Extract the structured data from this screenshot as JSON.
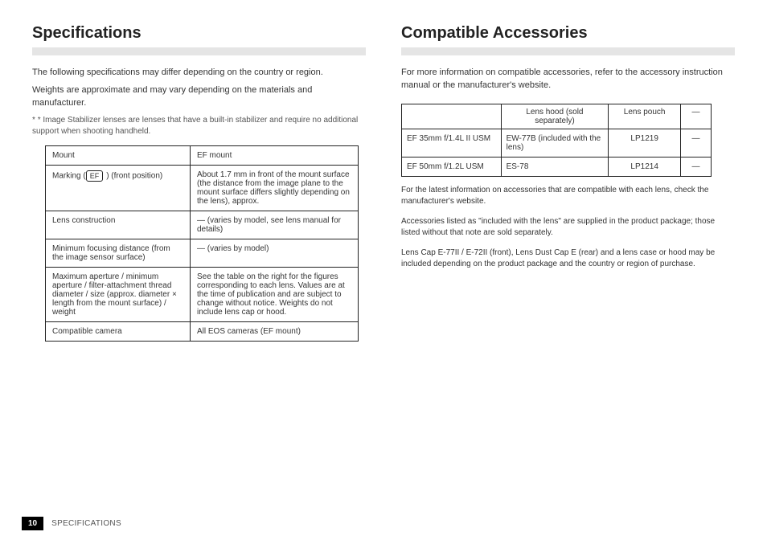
{
  "left": {
    "title": "Specifications",
    "intro_lines": [
      "The following specifications may differ depending on the country or region.",
      "Weights are approximate and may vary depending on the materials and manufacturer."
    ],
    "note": "* Image Stabilizer lenses are lenses that have a built-in stabilizer and require no additional support when shooting handheld.",
    "spec_rows": [
      {
        "k": "Mount",
        "v": "EF mount",
        "icon": null
      },
      {
        "k_prefix": "Marking (",
        "k_suffix": ") (front position)",
        "icon": "EF",
        "v": "About 1.7 mm in front of the mount surface (the distance from the image plane to the mount surface differs slightly depending on the lens), approx."
      },
      {
        "k": "Lens construction",
        "v": "— (varies by model, see lens manual for details)"
      },
      {
        "k": "Minimum focusing distance (from the image sensor surface)",
        "v": "— (varies by model)"
      },
      {
        "k": "Maximum aperture / minimum aperture / filter-attachment thread diameter / size (approx. diameter × length from the mount surface) / weight",
        "v": "See the table on the right for the figures corresponding to each lens. Values are at the time of publication and are subject to change without notice. Weights do not include lens cap or hood."
      },
      {
        "k": "Compatible camera",
        "v": "All EOS cameras (EF mount)"
      }
    ]
  },
  "right": {
    "title": "Compatible Accessories",
    "intro": "For more information on compatible accessories, refer to the accessory instruction manual or the manufacturer's website.",
    "headers": [
      "",
      "Lens hood (sold separately)",
      "Lens pouch",
      "—"
    ],
    "rows": [
      {
        "a": "EF 35mm f/1.4L II USM",
        "b": "EW-77B (included with the lens)",
        "c": "LP1219",
        "d": "—"
      },
      {
        "a": "EF 50mm f/1.2L USM",
        "b": "ES-78",
        "c": "LP1214",
        "d": "—"
      }
    ],
    "after": [
      "For the latest information on accessories that are compatible with each lens, check the manufacturer's website.",
      "Accessories listed as \"included with the lens\" are supplied in the product package; those listed without that note are sold separately.",
      "",
      "Lens Cap E-77II / E-72II (front), Lens Dust Cap E (rear) and a lens case or hood may be included depending on the product package and the country or region of purchase."
    ]
  },
  "footer": {
    "page": "10",
    "label": "SPECIFICATIONS"
  }
}
